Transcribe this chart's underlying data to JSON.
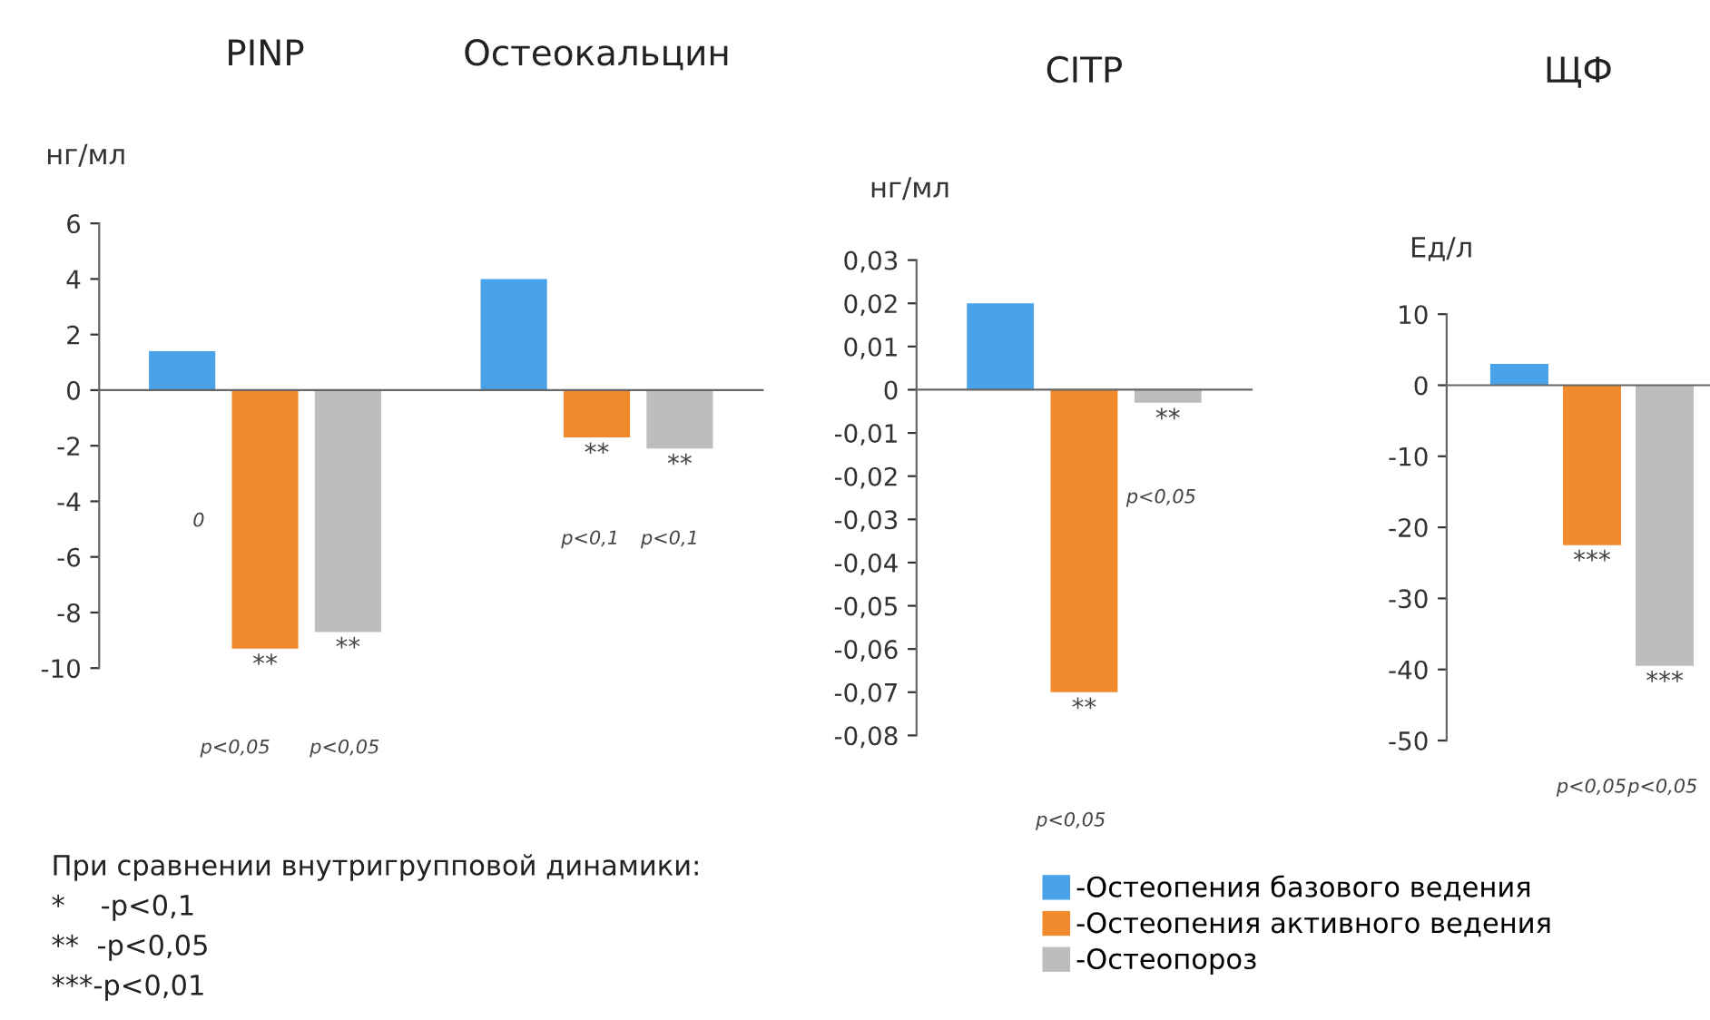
{
  "chart_data": [
    {
      "type": "bar",
      "categories": [
        "PINP",
        "Остеокальцин"
      ],
      "ylabel": "нг/мл",
      "ylim": [
        -10,
        6
      ],
      "yticks": [
        -10,
        -8,
        -6,
        -4,
        -2,
        0,
        2,
        4,
        6
      ],
      "legend": "bottom",
      "series": [
        {
          "name": "-Остеопения базового ведения",
          "color": "#4aa3e8",
          "values": [
            1.4,
            4.0
          ]
        },
        {
          "name": "-Остеопения активного ведения",
          "color": "#f08a2c",
          "values": [
            -9.3,
            -1.7
          ],
          "value_labels": [
            "**",
            "**"
          ]
        },
        {
          "name": "-Остеопороз",
          "color": "#bdbdbd",
          "values": [
            -8.7,
            -2.1
          ],
          "value_labels": [
            "**",
            "**"
          ]
        }
      ],
      "annotations": [
        "0",
        "p<0,05",
        "p<0,05",
        "p<0,1",
        "p<0,1"
      ]
    },
    {
      "type": "bar",
      "title": "CITP",
      "categories": [
        null
      ],
      "ylabel": "нг/мл",
      "ylim": [
        -0.08,
        0.03
      ],
      "yticks": [
        {
          "value": -0.08,
          "label": "-0,08"
        },
        {
          "value": -0.07,
          "label": "-0,07"
        },
        {
          "value": -0.06,
          "label": "-0,06"
        },
        {
          "value": -0.05,
          "label": "-0,05"
        },
        {
          "value": -0.04,
          "label": "-0,04"
        },
        {
          "value": -0.03,
          "label": "-0,03"
        },
        {
          "value": -0.02,
          "label": "-0,02"
        },
        {
          "value": -0.01,
          "label": "-0,01"
        },
        {
          "value": 0,
          "label": "0"
        },
        {
          "value": 0.01,
          "label": "0,01"
        },
        {
          "value": 0.02,
          "label": "0,02"
        },
        {
          "value": 0.03,
          "label": "0,03"
        }
      ],
      "series": [
        {
          "color": "#4aa3e8",
          "values": [
            0.02
          ]
        },
        {
          "color": "#f08a2c",
          "values": [
            -0.07
          ],
          "value_labels": [
            "**"
          ]
        },
        {
          "color": "#bdbdbd",
          "values": [
            -0.003
          ],
          "value_labels": [
            "**"
          ]
        }
      ],
      "annotations": [
        "p<0,05",
        "p<0,05"
      ]
    },
    {
      "type": "bar",
      "title": "ЩФ",
      "categories": [
        null
      ],
      "ylabel": "Ед/л",
      "ylim": [
        -50,
        10
      ],
      "yticks": [
        -50,
        -40,
        -30,
        -20,
        -10,
        0,
        10
      ],
      "series": [
        {
          "color": "#4aa3e8",
          "values": [
            3
          ]
        },
        {
          "color": "#f08a2c",
          "values": [
            -22.5
          ],
          "value_labels": [
            "***"
          ]
        },
        {
          "color": "#bdbdbd",
          "values": [
            -39.5
          ],
          "value_labels": [
            "***"
          ]
        }
      ],
      "annotations": [
        "p<0,05",
        "p<0,05"
      ]
    },
    {
      "type": "other",
      "annotations": [
        "При сравнении внутригрупповой динамики:",
        "*    -p<0,1",
        "**  -p<0,05",
        "***-p<0,01"
      ]
    }
  ]
}
